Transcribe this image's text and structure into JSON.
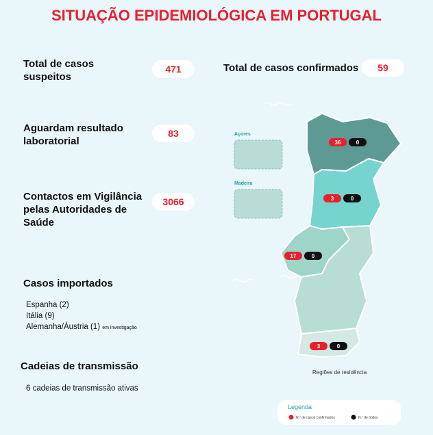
{
  "title": "SITUAÇÃO EPIDEMIOLÓGICA EM PORTUGAL",
  "stats": [
    {
      "label": "Total de casos suspeitos",
      "value": 471
    },
    {
      "label": "Aguardam resultado laboratorial",
      "value": 83
    },
    {
      "label": "Contactos em Vigilância pelas Autoridades de Saúde",
      "value": 3066
    }
  ],
  "confirmed": {
    "label": "Total de casos confirmados",
    "value": 59
  },
  "imported": {
    "title": "Casos importados",
    "items": [
      "Espanha (2)",
      "Itália (9)",
      "Alemanha/Áustria (1)"
    ],
    "note": "em investigação"
  },
  "chains": {
    "title": "Cadeias de transmissão",
    "text": "6 cadeias de transmissão ativas"
  },
  "map": {
    "insets": [
      "Açores",
      "Madeira"
    ],
    "regions": [
      {
        "confirmed": 36,
        "deaths": 0
      },
      {
        "confirmed": 3,
        "deaths": 0
      },
      {
        "confirmed": 17,
        "deaths": 0
      },
      {
        "confirmed": 3,
        "deaths": 0
      }
    ],
    "caption": "Regiões de residência"
  },
  "legend": {
    "title": "Legenda",
    "items": [
      "N.º de casos confirmados",
      "N.º de óbitos"
    ]
  }
}
